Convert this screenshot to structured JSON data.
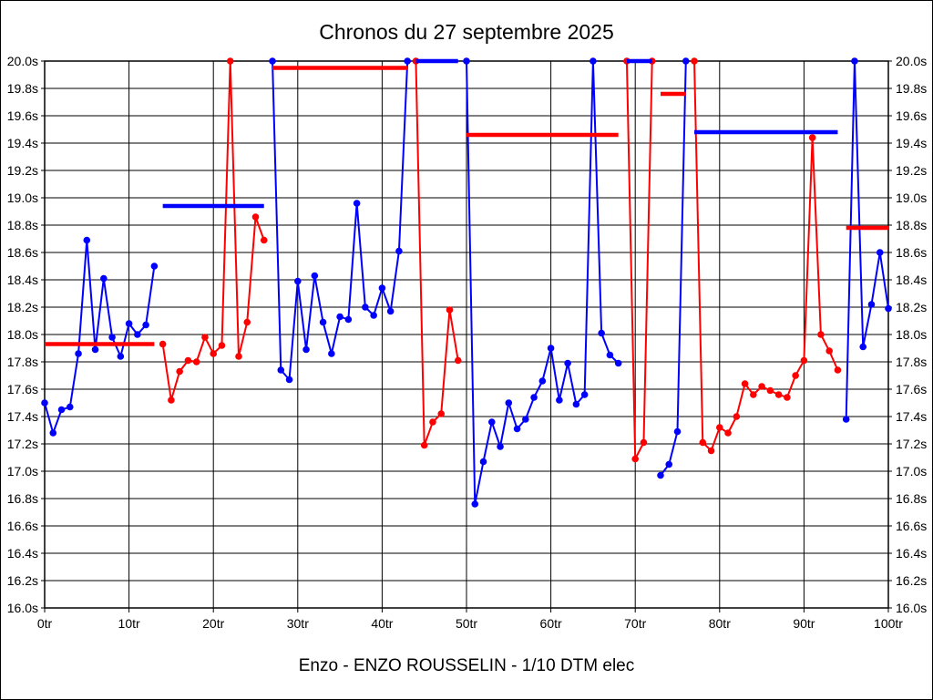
{
  "chart_data": {
    "type": "line",
    "title": "Chronos du 27 septembre 2025",
    "footer": "Enzo - ENZO ROUSSELIN - 1/10 DTM elec",
    "x_unit": "tr",
    "y_unit": "s",
    "xlim": [
      0,
      100
    ],
    "ylim": [
      16.0,
      20.0
    ],
    "x_tick_step": 10,
    "y_tick_step": 0.2,
    "x_tick_labels": [
      "0tr",
      "10tr",
      "20tr",
      "30tr",
      "40tr",
      "50tr",
      "60tr",
      "70tr",
      "80tr",
      "90tr",
      "100tr"
    ],
    "y_tick_labels": [
      "20.0s",
      "19.8s",
      "19.6s",
      "19.4s",
      "19.2s",
      "19.0s",
      "18.8s",
      "18.6s",
      "18.4s",
      "18.2s",
      "18.0s",
      "17.8s",
      "17.6s",
      "17.4s",
      "17.2s",
      "17.0s",
      "16.8s",
      "16.6s",
      "16.4s",
      "16.2s",
      "16.0s"
    ],
    "grid": true,
    "legend": "none",
    "clip_value": 20.0,
    "colors": {
      "blue": "#0000ff",
      "red": "#ff0000",
      "grid": "#000000",
      "text": "#000000",
      "background": "#ffffff"
    },
    "stints": [
      {
        "name": "stint-1",
        "color": "blue",
        "start_lap": 0,
        "laps": [
          17.5,
          17.28,
          17.45,
          17.47,
          17.86,
          18.69,
          17.89,
          18.41,
          17.98,
          17.84,
          18.08,
          18.0,
          18.07,
          18.5
        ],
        "avg_line": {
          "color": "red",
          "value": 17.93,
          "from_lap": 0,
          "to_lap": 13
        }
      },
      {
        "name": "stint-2",
        "color": "red",
        "start_lap": 14,
        "laps": [
          17.93,
          17.52,
          17.73,
          17.81,
          17.8,
          17.98,
          17.86,
          17.92,
          20.0,
          17.84,
          18.09,
          18.86,
          18.69
        ],
        "avg_line": {
          "color": "blue",
          "value": 18.94,
          "from_lap": 14,
          "to_lap": 26
        }
      },
      {
        "name": "stint-3",
        "color": "blue",
        "start_lap": 27,
        "laps": [
          20.0,
          17.74,
          17.67,
          18.39,
          17.89,
          18.43,
          18.09,
          17.86,
          18.13,
          18.11,
          18.96,
          18.2,
          18.14,
          18.34,
          18.17,
          18.61,
          20.0
        ],
        "avg_line": {
          "color": "red",
          "value": 19.95,
          "from_lap": 27,
          "to_lap": 43
        }
      },
      {
        "name": "stint-4",
        "color": "red",
        "start_lap": 44,
        "laps": [
          20.0,
          17.19,
          17.36,
          17.42,
          18.18,
          17.81
        ],
        "avg_line": {
          "color": "blue",
          "value": 20.0,
          "from_lap": 44,
          "to_lap": 49
        }
      },
      {
        "name": "stint-5",
        "color": "blue",
        "start_lap": 50,
        "laps": [
          20.0,
          16.76,
          17.07,
          17.36,
          17.18,
          17.5,
          17.31,
          17.38,
          17.54,
          17.66,
          17.9,
          17.52,
          17.79,
          17.49,
          17.56,
          20.0,
          18.01,
          17.85,
          17.79
        ],
        "avg_line": {
          "color": "red",
          "value": 19.46,
          "from_lap": 50,
          "to_lap": 68
        }
      },
      {
        "name": "stint-6",
        "color": "red",
        "start_lap": 69,
        "laps": [
          20.0,
          17.09,
          17.21,
          20.0
        ],
        "avg_line": {
          "color": "blue",
          "value": 20.0,
          "from_lap": 69,
          "to_lap": 72
        }
      },
      {
        "name": "stint-7",
        "color": "blue",
        "start_lap": 73,
        "laps": [
          16.97,
          17.05,
          17.29,
          20.0
        ],
        "avg_line": {
          "color": "red",
          "value": 19.76,
          "from_lap": 73,
          "to_lap": 76
        }
      },
      {
        "name": "stint-8",
        "color": "red",
        "start_lap": 77,
        "laps": [
          20.0,
          17.21,
          17.15,
          17.32,
          17.28,
          17.4,
          17.64,
          17.56,
          17.62,
          17.59,
          17.56,
          17.54,
          17.7,
          17.81,
          19.44,
          18.0,
          17.88,
          17.74
        ],
        "avg_line": {
          "color": "blue",
          "value": 19.48,
          "from_lap": 77,
          "to_lap": 94
        }
      },
      {
        "name": "stint-9",
        "color": "blue",
        "start_lap": 95,
        "laps": [
          17.38,
          20.0,
          17.91,
          18.22,
          18.6,
          18.19
        ],
        "avg_line": {
          "color": "red",
          "value": 18.78,
          "from_lap": 95,
          "to_lap": 100
        }
      }
    ]
  }
}
